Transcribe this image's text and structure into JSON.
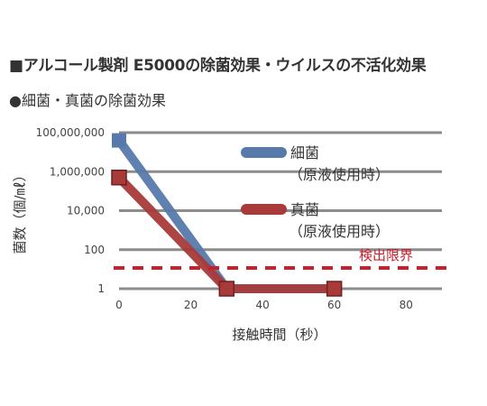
{
  "header": {
    "title": "■アルコール製剤 E5000の除菌効果・ウイルスの不活化効果",
    "subtitle": "●細菌・真菌の除菌効果"
  },
  "chart_data": {
    "type": "line",
    "title": "",
    "xlabel": "接触時間（秒）",
    "ylabel": "菌数（個/㎖）",
    "x_ticks": [
      0,
      20,
      40,
      60,
      80
    ],
    "y_ticks": [
      "100,000,000",
      "1,000,000",
      "10,000",
      "100",
      "1"
    ],
    "xlim": [
      0,
      90
    ],
    "ylim_log10": [
      0,
      8
    ],
    "y_scale": "log",
    "grid": true,
    "series": [
      {
        "name_line1": "細菌",
        "name_line2": "（原液使用時）",
        "color": "#5779ac",
        "x": [
          0,
          30,
          60
        ],
        "y": [
          40000000,
          1,
          1
        ]
      },
      {
        "name_line1": "真菌",
        "name_line2": "（原液使用時）",
        "color": "#a83a3a",
        "x": [
          0,
          30,
          60
        ],
        "y": [
          500000,
          1,
          1
        ]
      }
    ],
    "annotations": {
      "detection_limit_label": "検出限界",
      "detection_limit_color": "#c8202d"
    }
  }
}
